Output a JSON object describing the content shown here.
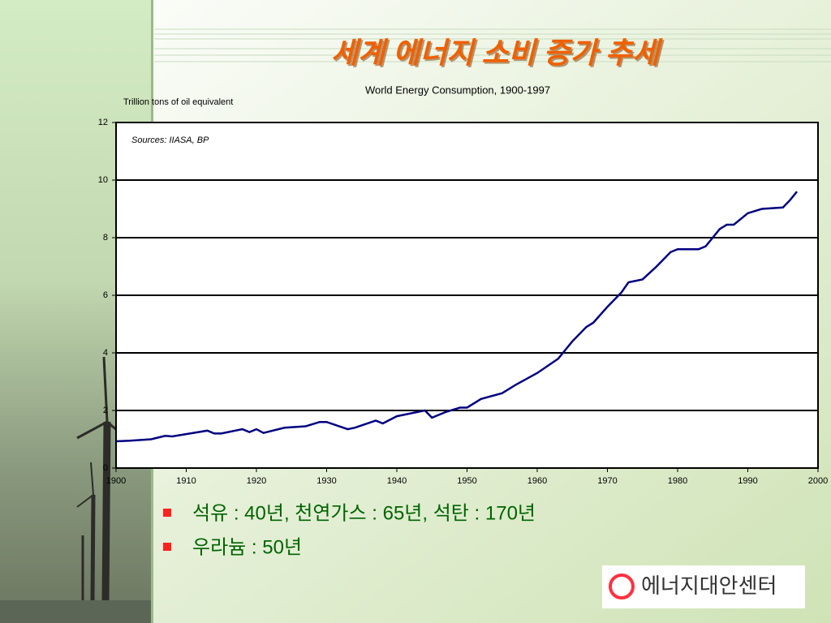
{
  "slide_title": "세계 에너지 소비 증가 추세",
  "bullets": [
    "석유 : 40년, 천연가스 : 65년, 석탄 : 170년",
    "우라늄 : 50년"
  ],
  "logo": "에너지대안센터",
  "chart_data": {
    "type": "line",
    "title": "World Energy Consumption, 1900-1997",
    "y_label": "Trillion tons of oil equivalent",
    "annotation": "Sources: IIASA, BP",
    "x": [
      1900,
      1902,
      1905,
      1907,
      1908,
      1910,
      1913,
      1914,
      1915,
      1918,
      1919,
      1920,
      1921,
      1924,
      1927,
      1929,
      1930,
      1933,
      1934,
      1937,
      1938,
      1940,
      1944,
      1945,
      1947,
      1949,
      1950,
      1952,
      1955,
      1957,
      1960,
      1963,
      1965,
      1967,
      1968,
      1970,
      1972,
      1973,
      1975,
      1977,
      1979,
      1980,
      1983,
      1984,
      1986,
      1987,
      1988,
      1990,
      1992,
      1995,
      1996,
      1997
    ],
    "values": [
      0.93,
      0.95,
      1.0,
      1.12,
      1.1,
      1.18,
      1.3,
      1.2,
      1.2,
      1.35,
      1.25,
      1.35,
      1.22,
      1.4,
      1.45,
      1.6,
      1.6,
      1.35,
      1.4,
      1.65,
      1.55,
      1.8,
      2.0,
      1.75,
      1.95,
      2.1,
      2.1,
      2.4,
      2.6,
      2.9,
      3.3,
      3.8,
      4.4,
      4.9,
      5.05,
      5.6,
      6.1,
      6.45,
      6.55,
      7.0,
      7.5,
      7.6,
      7.6,
      7.7,
      8.3,
      8.45,
      8.45,
      8.85,
      9.0,
      9.05,
      9.3,
      9.6
    ],
    "color": "#000080",
    "xlim": [
      1900,
      2000
    ],
    "xticks": [
      1900,
      1910,
      1920,
      1930,
      1940,
      1950,
      1960,
      1970,
      1980,
      1990,
      2000
    ],
    "ylim": [
      0,
      12
    ],
    "yticks": [
      0,
      2,
      4,
      6,
      8,
      10,
      12
    ],
    "grid": true
  }
}
